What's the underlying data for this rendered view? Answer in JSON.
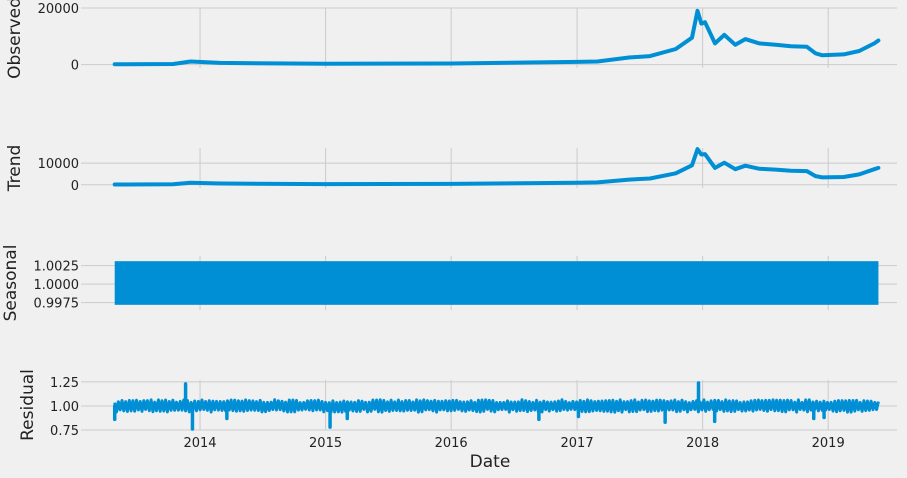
{
  "chart_data": [
    {
      "type": "line",
      "ylabel": "Observed",
      "ylim": [
        -1200,
        20000
      ],
      "yticks": [
        0,
        20000
      ],
      "ytick_labels": [
        "0",
        "20000"
      ],
      "x": [
        "2013-04-28",
        "2013-10-15",
        "2013-12-05",
        "2014-03-01",
        "2015-01-01",
        "2016-01-01",
        "2017-01-01",
        "2017-03-01",
        "2017-06-01",
        "2017-08-01",
        "2017-10-15",
        "2017-12-01",
        "2017-12-17",
        "2017-12-28",
        "2018-01-08",
        "2018-02-06",
        "2018-03-05",
        "2018-04-06",
        "2018-05-05",
        "2018-06-15",
        "2018-08-01",
        "2018-09-15",
        "2018-10-31",
        "2018-11-25",
        "2018-12-15",
        "2019-02-15",
        "2019-04-01",
        "2019-05-15",
        "2019-05-27"
      ],
      "series": [
        {
          "values": [
            120,
            200,
            1100,
            600,
            300,
            400,
            950,
            1100,
            2500,
            3000,
            5500,
            9500,
            19000,
            14500,
            15000,
            7500,
            10500,
            7000,
            9000,
            7500,
            7000,
            6500,
            6300,
            4000,
            3300,
            3600,
            4800,
            7500,
            8500
          ]
        }
      ]
    },
    {
      "type": "line",
      "ylabel": "Trend",
      "ylim": [
        -1500,
        17000
      ],
      "yticks": [
        0,
        10000
      ],
      "ytick_labels": [
        "0",
        "10000"
      ],
      "x": [
        "2013-04-28",
        "2013-10-15",
        "2013-12-05",
        "2014-03-01",
        "2015-01-01",
        "2016-01-01",
        "2017-01-01",
        "2017-03-01",
        "2017-06-01",
        "2017-08-01",
        "2017-10-15",
        "2017-12-01",
        "2017-12-17",
        "2017-12-28",
        "2018-01-08",
        "2018-02-06",
        "2018-03-05",
        "2018-04-06",
        "2018-05-05",
        "2018-06-15",
        "2018-08-01",
        "2018-09-15",
        "2018-10-31",
        "2018-11-25",
        "2018-12-15",
        "2019-02-15",
        "2019-04-01",
        "2019-05-15",
        "2019-05-27"
      ],
      "series": [
        {
          "values": [
            120,
            200,
            950,
            600,
            300,
            400,
            950,
            1100,
            2400,
            2900,
            5300,
            9000,
            16500,
            14000,
            14200,
            7800,
            10200,
            7200,
            8800,
            7400,
            7000,
            6500,
            6300,
            4000,
            3400,
            3600,
            4800,
            7200,
            7800
          ]
        }
      ]
    },
    {
      "type": "area",
      "ylabel": "Seasonal",
      "ylim": [
        0.9965,
        1.0038
      ],
      "yticks": [
        0.9975,
        1.0,
        1.0025
      ],
      "ytick_labels": [
        "0.9975",
        "1.0000",
        "1.0025"
      ],
      "x": [
        "2013-04-28",
        "2019-05-27"
      ],
      "band": [
        0.9972,
        1.0031
      ]
    },
    {
      "type": "line",
      "ylabel": "Residual",
      "ylim": [
        0.75,
        1.27
      ],
      "yticks": [
        0.75,
        1.0,
        1.25
      ],
      "ytick_labels": [
        "0.75",
        "1.00",
        "1.25"
      ],
      "x": [
        "2013-04-28",
        "2019-05-27"
      ],
      "series": [
        {
          "baseline": 1.0,
          "spikes": [
            [
              "2013-04-28",
              0.86
            ],
            [
              "2013-11-20",
              1.23
            ],
            [
              "2013-12-10",
              0.76
            ],
            [
              "2014-03-20",
              0.87
            ],
            [
              "2015-01-14",
              0.78
            ],
            [
              "2015-03-05",
              0.87
            ],
            [
              "2016-09-12",
              0.86
            ],
            [
              "2017-01-05",
              0.89
            ],
            [
              "2017-09-14",
              0.83
            ],
            [
              "2017-12-20",
              1.24
            ],
            [
              "2018-02-05",
              0.84
            ],
            [
              "2018-11-20",
              0.87
            ],
            [
              "2018-12-20",
              0.88
            ]
          ]
        }
      ]
    }
  ],
  "xaxis": {
    "label": "Date",
    "ticks": [
      {
        "date": "2014-01-01",
        "label": "2014"
      },
      {
        "date": "2015-01-01",
        "label": "2015"
      },
      {
        "date": "2016-01-01",
        "label": "2016"
      },
      {
        "date": "2017-01-01",
        "label": "2017"
      },
      {
        "date": "2018-01-01",
        "label": "2018"
      },
      {
        "date": "2019-01-01",
        "label": "2019"
      }
    ],
    "range": [
      "2013-01-20",
      "2019-07-20"
    ]
  },
  "colors": {
    "line": "#008fd5",
    "grid": "#cbcbcb",
    "background": "#f0f0f0",
    "text": "#222222"
  },
  "grid": true
}
